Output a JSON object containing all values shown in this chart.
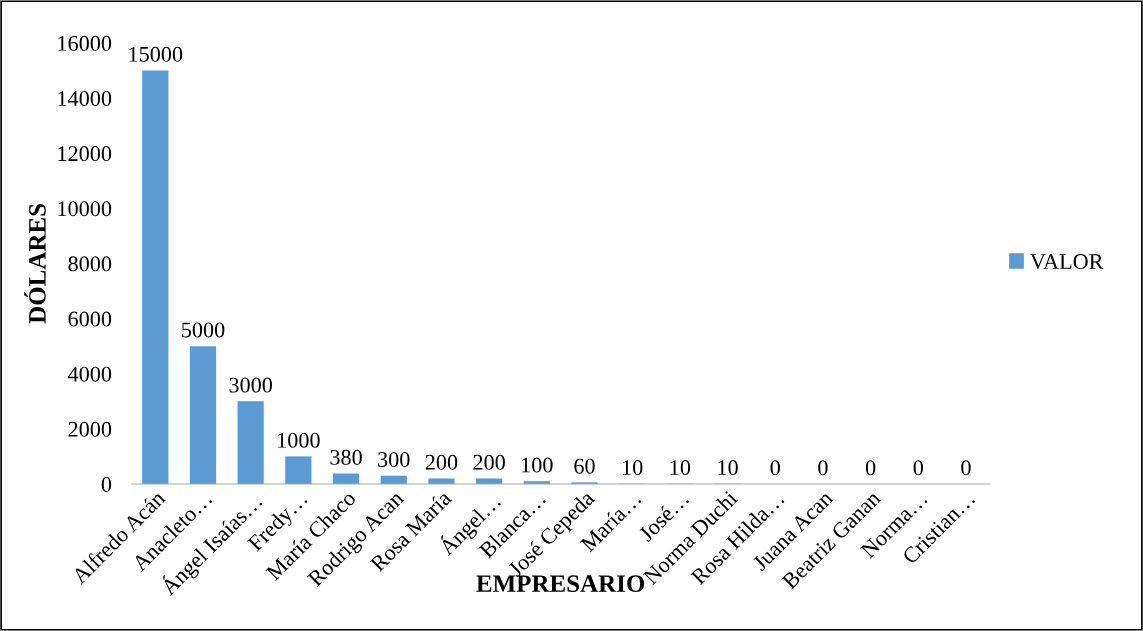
{
  "chart_data": {
    "type": "bar",
    "xlabel": "EMPRESARIO",
    "ylabel": "DÓLARES",
    "categories": [
      "Alfredo Acán",
      "Anacleto…",
      "Ángel Isaías…",
      "Fredy…",
      "María Chaco",
      "Rodrigo Acan",
      "Rosa María",
      "Ángel…",
      "Blanca…",
      "José Cepeda",
      "María…",
      "José…",
      "Norma Duchi",
      "Rosa Hilda…",
      "Juana Acan",
      "Beatriz Ganan",
      "Norma…",
      "Cristian…"
    ],
    "series": [
      {
        "name": "VALOR",
        "color": "#5b9bd5",
        "values": [
          15000,
          5000,
          3000,
          1000,
          380,
          300,
          200,
          200,
          100,
          60,
          10,
          10,
          10,
          0,
          0,
          0,
          0,
          0
        ]
      }
    ],
    "ylim": [
      0,
      16000
    ],
    "yticks": [
      0,
      2000,
      4000,
      6000,
      8000,
      10000,
      12000,
      14000,
      16000
    ],
    "data_labels": true,
    "legend": "right",
    "grid": false
  }
}
